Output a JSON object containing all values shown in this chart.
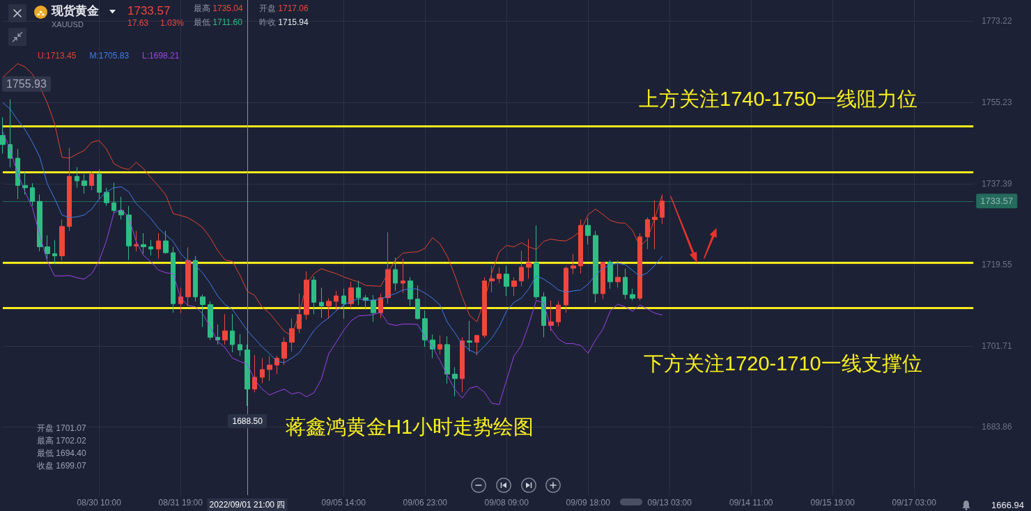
{
  "chart_data": {
    "type": "candlestick",
    "title": "现货黄金",
    "subtitle": "XAUUSD",
    "categories": [
      null,
      null,
      null,
      null,
      null,
      null,
      null,
      null,
      null,
      null,
      null,
      null,
      null,
      "08/30 10:00",
      null,
      null,
      null,
      null,
      null,
      null,
      null,
      null,
      null,
      null,
      "08/31 19:00",
      null,
      null,
      null,
      null,
      null,
      null,
      null,
      null,
      "2022/09/01 21:00 四",
      null,
      null,
      null,
      null,
      null,
      null,
      null,
      null,
      null,
      null,
      null,
      null,
      "09/05 14:00",
      null,
      null,
      null,
      null,
      null,
      null,
      null,
      null,
      null,
      null,
      "09/06 23:00",
      null,
      null,
      null,
      null,
      null,
      null,
      null,
      null,
      null,
      null,
      "09/08 09:00",
      null,
      null,
      null,
      null,
      null,
      null,
      null,
      null,
      null,
      null,
      "09/09 18:00",
      null,
      null,
      null,
      null,
      null,
      null,
      null,
      null,
      null,
      null,
      "09/13 03:00",
      null,
      null,
      null,
      null,
      null,
      null,
      null,
      null,
      null,
      null,
      "09/14 11:00",
      null,
      null,
      null,
      null,
      null,
      null,
      null,
      null,
      null,
      null,
      "09/15 19:00",
      null,
      null,
      null,
      null,
      null,
      null,
      null,
      null,
      null,
      null,
      "09/17 03:00",
      null,
      null,
      null,
      null,
      null,
      null,
      null,
      null
    ],
    "ohlc": [
      [
        1748,
        1752,
        1744,
        1746
      ],
      [
        1746,
        1755.93,
        1741,
        1743
      ],
      [
        1743,
        1745,
        1734,
        1737
      ],
      [
        1737,
        1740,
        1735,
        1736.5
      ],
      [
        1736.5,
        1737.5,
        1732.5,
        1733.5
      ],
      [
        1733.5,
        1735,
        1722.5,
        1723.5
      ],
      [
        1723.5,
        1726,
        1720.8,
        1722
      ],
      [
        1722,
        1725,
        1719.8,
        1721.5
      ],
      [
        1721.5,
        1729.5,
        1720.5,
        1728
      ],
      [
        1728,
        1745.3,
        1727,
        1739
      ],
      [
        1739,
        1741,
        1736.5,
        1738
      ],
      [
        1738,
        1739.5,
        1735.2,
        1737
      ],
      [
        1737,
        1740.2,
        1736,
        1739.5
      ],
      [
        1739.5,
        1740.5,
        1734,
        1735.5
      ],
      [
        1735.5,
        1736.5,
        1732.5,
        1733.2
      ],
      [
        1733.2,
        1737.6,
        1730.8,
        1731.5
      ],
      [
        1731.5,
        1734.5,
        1729.5,
        1730.5
      ],
      [
        1730.5,
        1732.5,
        1720.6,
        1723.7
      ],
      [
        1723.7,
        1727,
        1722.5,
        1724
      ],
      [
        1724,
        1726.5,
        1722,
        1723.5
      ],
      [
        1723.5,
        1725,
        1721.6,
        1723
      ],
      [
        1723,
        1726.5,
        1720.9,
        1724.8
      ],
      [
        1724.8,
        1727,
        1722,
        1722.2
      ],
      [
        1722.2,
        1723.5,
        1709,
        1711
      ],
      [
        1711,
        1714.5,
        1708.9,
        1712.5
      ],
      [
        1712.5,
        1723.4,
        1710.5,
        1720.5
      ],
      [
        1720.5,
        1721.5,
        1711.5,
        1712.5
      ],
      [
        1712.5,
        1713,
        1705.9,
        1710.8
      ],
      [
        1710.8,
        1711.5,
        1703,
        1703.6
      ],
      [
        1703.6,
        1706.4,
        1702,
        1703
      ],
      [
        1703,
        1708.7,
        1702,
        1705
      ],
      [
        1705,
        1708.7,
        1700.3,
        1702
      ],
      [
        1702,
        1704.3,
        1699.5,
        1700.8
      ],
      [
        1700.8,
        1702,
        1688.5,
        1692.2
      ],
      [
        1692.2,
        1699.7,
        1691.5,
        1694.8
      ],
      [
        1694.8,
        1699,
        1693.5,
        1696.5
      ],
      [
        1696.5,
        1699.5,
        1694,
        1697.5
      ],
      [
        1697.5,
        1699.5,
        1695.5,
        1699
      ],
      [
        1699,
        1703.6,
        1697.5,
        1702.5
      ],
      [
        1702.5,
        1707.7,
        1700.5,
        1705.5
      ],
      [
        1705.5,
        1713.2,
        1704.5,
        1708.6
      ],
      [
        1708.6,
        1718.1,
        1707.5,
        1716.2
      ],
      [
        1716.2,
        1717,
        1708.7,
        1711.3
      ],
      [
        1711.3,
        1714.5,
        1707.9,
        1710.5
      ],
      [
        1710.5,
        1712.2,
        1707.7,
        1711.5
      ],
      [
        1711.5,
        1713.8,
        1709.6,
        1712.7
      ],
      [
        1712.7,
        1714.3,
        1707.7,
        1711
      ],
      [
        1711,
        1715.8,
        1710,
        1714.5
      ],
      [
        1714.5,
        1716,
        1710.7,
        1712.3
      ],
      [
        1712.3,
        1712.9,
        1709.7,
        1711.7
      ],
      [
        1711.7,
        1712.9,
        1707,
        1709
      ],
      [
        1709,
        1713.2,
        1707.8,
        1712.3
      ],
      [
        1712.3,
        1726.7,
        1711,
        1718.5
      ],
      [
        1718.5,
        1721.1,
        1713.8,
        1715.5
      ],
      [
        1715.5,
        1720.9,
        1713.3,
        1716
      ],
      [
        1716,
        1716.8,
        1710.5,
        1712
      ],
      [
        1712,
        1715,
        1707.5,
        1707.7
      ],
      [
        1707.7,
        1709.5,
        1701.5,
        1703
      ],
      [
        1703,
        1704.2,
        1699,
        1701
      ],
      [
        1701,
        1704,
        1699.8,
        1702
      ],
      [
        1702,
        1703.8,
        1693.4,
        1695.5
      ],
      [
        1695.5,
        1697,
        1690.6,
        1694.5
      ],
      [
        1694.5,
        1703.6,
        1691.5,
        1702.8
      ],
      [
        1702.8,
        1707.2,
        1700.5,
        1702.5
      ],
      [
        1702.5,
        1704.1,
        1699.6,
        1704
      ],
      [
        1704,
        1716.8,
        1703.5,
        1716
      ],
      [
        1716,
        1719.3,
        1713.5,
        1716.5
      ],
      [
        1716.5,
        1719,
        1715.5,
        1717.5
      ],
      [
        1717.5,
        1719.3,
        1712.7,
        1714.8
      ],
      [
        1714.8,
        1716.8,
        1712.7,
        1716
      ],
      [
        1716,
        1722.6,
        1714.8,
        1719
      ],
      [
        1719,
        1725.2,
        1716.5,
        1720
      ],
      [
        1720,
        1728.2,
        1712,
        1712.5
      ],
      [
        1712.5,
        1713.5,
        1703.6,
        1706.2
      ],
      [
        1706.2,
        1711.7,
        1705,
        1707
      ],
      [
        1707,
        1711.5,
        1706,
        1710.7
      ],
      [
        1710.7,
        1719.2,
        1709,
        1718.8
      ],
      [
        1718.8,
        1721.9,
        1717.5,
        1719.3
      ],
      [
        1719.3,
        1729.5,
        1717.6,
        1728.2
      ],
      [
        1728.2,
        1729.8,
        1724,
        1726
      ],
      [
        1726,
        1727,
        1711.2,
        1713.2
      ],
      [
        1713.2,
        1720.2,
        1712,
        1720.1
      ],
      [
        1720.1,
        1720.6,
        1714.3,
        1715.8
      ],
      [
        1715.8,
        1720.4,
        1714.5,
        1716.8
      ],
      [
        1716.8,
        1718.7,
        1712,
        1713
      ],
      [
        1713,
        1714.3,
        1711.7,
        1712.2
      ],
      [
        1712.2,
        1726.5,
        1711.7,
        1725.7
      ],
      [
        1725.7,
        1730,
        1723,
        1729.5
      ],
      [
        1729.5,
        1733.7,
        1723,
        1730
      ],
      [
        1730,
        1735,
        1728.5,
        1733.57
      ],
      null,
      null,
      null,
      null,
      null,
      null,
      null,
      null,
      null,
      null,
      null,
      null,
      null,
      null,
      null,
      null,
      null,
      null,
      null,
      null,
      null,
      null,
      null,
      null,
      null,
      null,
      null,
      null,
      null,
      null,
      null,
      null,
      null,
      null,
      null,
      null,
      null,
      null,
      null,
      null,
      null,
      null
    ],
    "series": [
      {
        "type": "line",
        "name": "U:1713.45",
        "color": "#e0452f",
        "values": [
          1760.8,
          1762.3,
          1763.8,
          1763.1,
          1761.5,
          1758.7,
          1755.2,
          1750.6,
          1743.2,
          1743.0,
          1743.9,
          1744.7,
          1746.5,
          1746.9,
          1745.0,
          1741.8,
          1740.9,
          1740.5,
          1742.1,
          1740.7,
          1738.7,
          1736.9,
          1734.9,
          1730.8,
          1730.4,
          1729.9,
          1728.9,
          1727.7,
          1725.5,
          1722.7,
          1720.6,
          1720.3,
          1717.3,
          1713.7,
          1712.8,
          1710.2,
          1708.9,
          1706.9,
          1704.9,
          1703.9,
          1708.7,
          1715.3,
          1717.6,
          1718.7,
          1718.1,
          1717.6,
          1716.9,
          1716.3,
          1715.8,
          1715.0,
          1714.9,
          1714.8,
          1717.8,
          1720.6,
          1722.1,
          1722.3,
          1722.4,
          1723.2,
          1725.5,
          1724.2,
          1721.4,
          1717.3,
          1712.5,
          1708.4,
          1707.0,
          1711.7,
          1717.8,
          1722.4,
          1723.8,
          1723.5,
          1724.4,
          1723.5,
          1722.9,
          1724.7,
          1725.2,
          1724.9,
          1724.8,
          1725.7,
          1727.0,
          1730.6,
          1731.8,
          1730.6,
          1729.3,
          1728.8,
          1728.7,
          1727.1,
          1723.5,
          1725.2,
          1729.8,
          1734.9,
          null,
          null,
          null,
          null,
          null,
          null,
          null,
          null,
          null,
          null,
          null,
          null,
          null,
          null,
          null,
          null,
          null,
          null,
          null,
          null,
          null,
          null,
          null,
          null,
          null,
          null,
          null,
          null,
          null,
          null,
          null,
          null,
          null,
          null,
          null,
          null,
          null,
          null,
          null,
          null,
          null,
          null
        ]
      },
      {
        "type": "line",
        "name": "M:1705.83",
        "color": "#3f7de8",
        "values": [
          1755.2,
          1753.8,
          1751.4,
          1749.3,
          1746.5,
          1743.2,
          1737.4,
          1734.1,
          1730.5,
          1729.9,
          1730.1,
          1730.5,
          1731.8,
          1734.0,
          1735.6,
          1736.5,
          1736.7,
          1735.6,
          1733.0,
          1731.4,
          1729.7,
          1727.6,
          1726.1,
          1724.7,
          1722.0,
          1720.4,
          1719.4,
          1717.7,
          1715.4,
          1712.7,
          1710.8,
          1709.7,
          1707.4,
          1705.1,
          1703.3,
          1701.5,
          1700.0,
          1698.3,
          1698.0,
          1699.0,
          1700.2,
          1702.6,
          1705.1,
          1706.7,
          1707.9,
          1709.4,
          1710.7,
          1711.5,
          1712.1,
          1711.7,
          1711.8,
          1712.0,
          1712.7,
          1713.2,
          1714.0,
          1714.3,
          1714.2,
          1713.3,
          1712.2,
          1710.7,
          1706.9,
          1704.6,
          1702.1,
          1700.8,
          1700.0,
          1701.6,
          1703.4,
          1705.9,
          1709.4,
          1711.3,
          1712.2,
          1714.3,
          1717.1,
          1716.4,
          1715.3,
          1714.0,
          1713.5,
          1713.8,
          1714.0,
          1715.3,
          1717.3,
          1718.7,
          1719.6,
          1719.9,
          1719.6,
          1718.3,
          1717.0,
          1717.8,
          1719.4,
          1721.4,
          null,
          null,
          null,
          null,
          null,
          null,
          null,
          null,
          null,
          null,
          null,
          null,
          null,
          null,
          null,
          null,
          null,
          null,
          null,
          null,
          null,
          null,
          null,
          null,
          null,
          null,
          null,
          null,
          null,
          null,
          null,
          null,
          null,
          null,
          null,
          null,
          null,
          null,
          null,
          null,
          null,
          null
        ]
      },
      {
        "type": "line",
        "name": "L:1698.21",
        "color": "#9b45e8",
        "values": [
          1748.8,
          1744.8,
          1739.7,
          1735.6,
          1732.1,
          1726.0,
          1720.4,
          1717.1,
          1717.1,
          1717.2,
          1716.7,
          1716.4,
          1717.6,
          1720.4,
          1724.9,
          1731.0,
          1731.7,
          1730.0,
          1724.7,
          1721.6,
          1720.2,
          1718.4,
          1717.8,
          1717.6,
          1712.2,
          1710.6,
          1710.3,
          1708.7,
          1705.9,
          1702.7,
          1701.3,
          1699.0,
          1698.3,
          1697.7,
          1694.2,
          1692.2,
          1690.9,
          1691.6,
          1692.2,
          1691.1,
          1691.5,
          1690.5,
          1691.4,
          1694.4,
          1700.0,
          1702.5,
          1705.1,
          1707.2,
          1708.3,
          1708.4,
          1708.6,
          1709.1,
          1706.6,
          1706.2,
          1706.5,
          1706.5,
          1706.4,
          1703.6,
          1701.6,
          1698.5,
          1695.2,
          1692.2,
          1690.2,
          1692.4,
          1692.8,
          1691.5,
          1689.1,
          1688.8,
          1694.2,
          1699.5,
          1701.8,
          1706.4,
          1711.7,
          1711.2,
          1705.4,
          1703.2,
          1702.2,
          1702.2,
          1701.8,
          1700.1,
          1703.0,
          1705.4,
          1709.4,
          1710.9,
          1710.3,
          1709.3,
          1710.7,
          1709.8,
          1708.9,
          1708.5,
          null,
          null,
          null,
          null,
          null,
          null,
          null,
          null,
          null,
          null,
          null,
          null,
          null,
          null,
          null,
          null,
          null,
          null,
          null,
          null,
          null,
          null,
          null,
          null,
          null,
          null,
          null,
          null,
          null,
          null,
          null,
          null,
          null,
          null,
          null,
          null,
          null,
          null,
          null,
          null,
          null,
          null
        ]
      }
    ],
    "ylim": [
      1668.9,
      1777.8
    ],
    "yticks": [
      1683.86,
      1701.71,
      1719.55,
      1737.39,
      1755.23,
      1773.22
    ],
    "ref_lines": [
      {
        "axis": "y",
        "value": 1750,
        "color": "#f8ec1c"
      },
      {
        "axis": "y",
        "value": 1740,
        "color": "#f8ec1c"
      },
      {
        "axis": "y",
        "value": 1720,
        "color": "#f8ec1c"
      },
      {
        "axis": "y",
        "value": 1710,
        "color": "#f8ec1c"
      },
      {
        "axis": "y",
        "value": 1733.57,
        "label": "1733.57",
        "color": "#2bb583"
      },
      {
        "axis": "x",
        "value": "2022/09/01 21:00 四",
        "color": "#8c91a0"
      }
    ],
    "annotations": [
      "1733.57",
      "17.63",
      "1.03%",
      "最高 1735.04",
      "开盘 1717.06",
      "最低 1711.60",
      "昨收 1715.94",
      "上方关注1740-1750一线阻力位",
      "下方关注1720-1710一线支撑位",
      "蒋鑫鸿黄金H1小时走势绘图",
      "开盘 1701.07",
      "最高 1702.02",
      "最低 1694.40",
      "收盘 1699.07",
      {
        "text": "1688.50",
        "x": "2022/09/01 21:00 四",
        "y": 1688.5
      },
      "1755.93",
      "1666.94"
    ],
    "legend": "top left",
    "grid": true,
    "marker": "none"
  }
}
